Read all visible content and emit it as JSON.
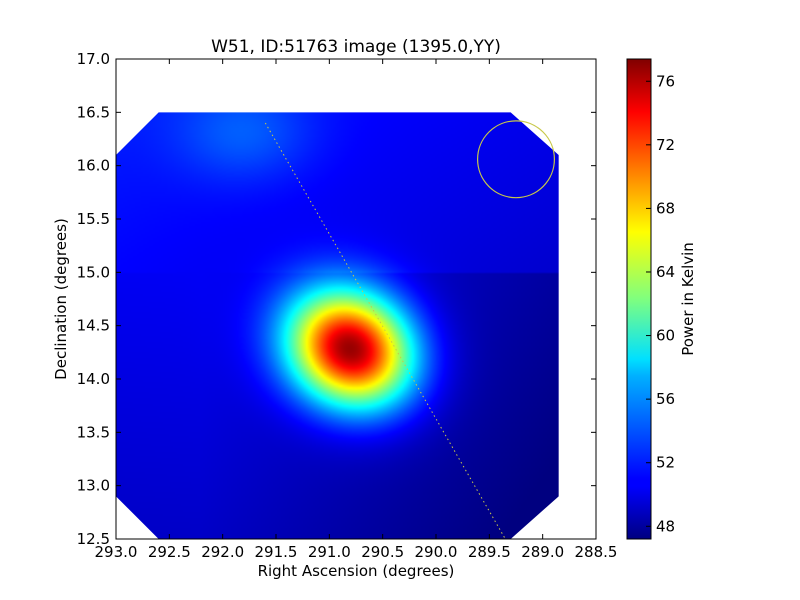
{
  "chart_data": {
    "type": "heatmap",
    "title": "W51, ID:51763 image (1395.0,YY)",
    "xlabel": "Right Ascension (degrees)",
    "ylabel": "Declination (degrees)",
    "xlim": [
      293.0,
      288.5
    ],
    "ylim": [
      12.5,
      17.0
    ],
    "x_ticks": [
      293.0,
      292.5,
      292.0,
      291.5,
      291.0,
      290.5,
      290.0,
      289.5,
      289.0,
      288.5
    ],
    "x_tick_labels": [
      "293.0",
      "292.5",
      "292.0",
      "291.5",
      "291.0",
      "290.5",
      "290.0",
      "289.5",
      "289.0",
      "288.5"
    ],
    "y_ticks": [
      12.5,
      13.0,
      13.5,
      14.0,
      14.5,
      15.0,
      15.5,
      16.0,
      16.5,
      17.0
    ],
    "y_tick_labels": [
      "12.5",
      "13.0",
      "13.5",
      "14.0",
      "14.5",
      "15.0",
      "15.5",
      "16.0",
      "16.5",
      "17.0"
    ],
    "colorbar": {
      "label": "Power in Kelvin",
      "colormap": "jet",
      "range": [
        47.2,
        77.4
      ],
      "ticks": [
        48,
        52,
        56,
        60,
        64,
        68,
        72,
        76
      ],
      "tick_labels": [
        "48",
        "52",
        "56",
        "60",
        "64",
        "68",
        "72",
        "76"
      ]
    },
    "peak": {
      "ra": 290.8,
      "dec": 14.28,
      "value": 77.4
    },
    "background_level": 50.0,
    "valid_region": [
      [
        292.6,
        16.5
      ],
      [
        289.3,
        16.5
      ],
      [
        288.85,
        16.1
      ],
      [
        288.85,
        12.9
      ],
      [
        289.3,
        12.5
      ],
      [
        292.6,
        12.5
      ],
      [
        293.0,
        12.9
      ],
      [
        293.0,
        16.1
      ]
    ],
    "beam": {
      "ra": 289.25,
      "dec": 16.06,
      "radius_deg": 0.36,
      "color": "#c8c84a"
    },
    "track_line": {
      "ra": [
        291.6,
        289.35
      ],
      "dec": [
        16.4,
        12.5
      ],
      "color": "#c8c84a"
    }
  }
}
